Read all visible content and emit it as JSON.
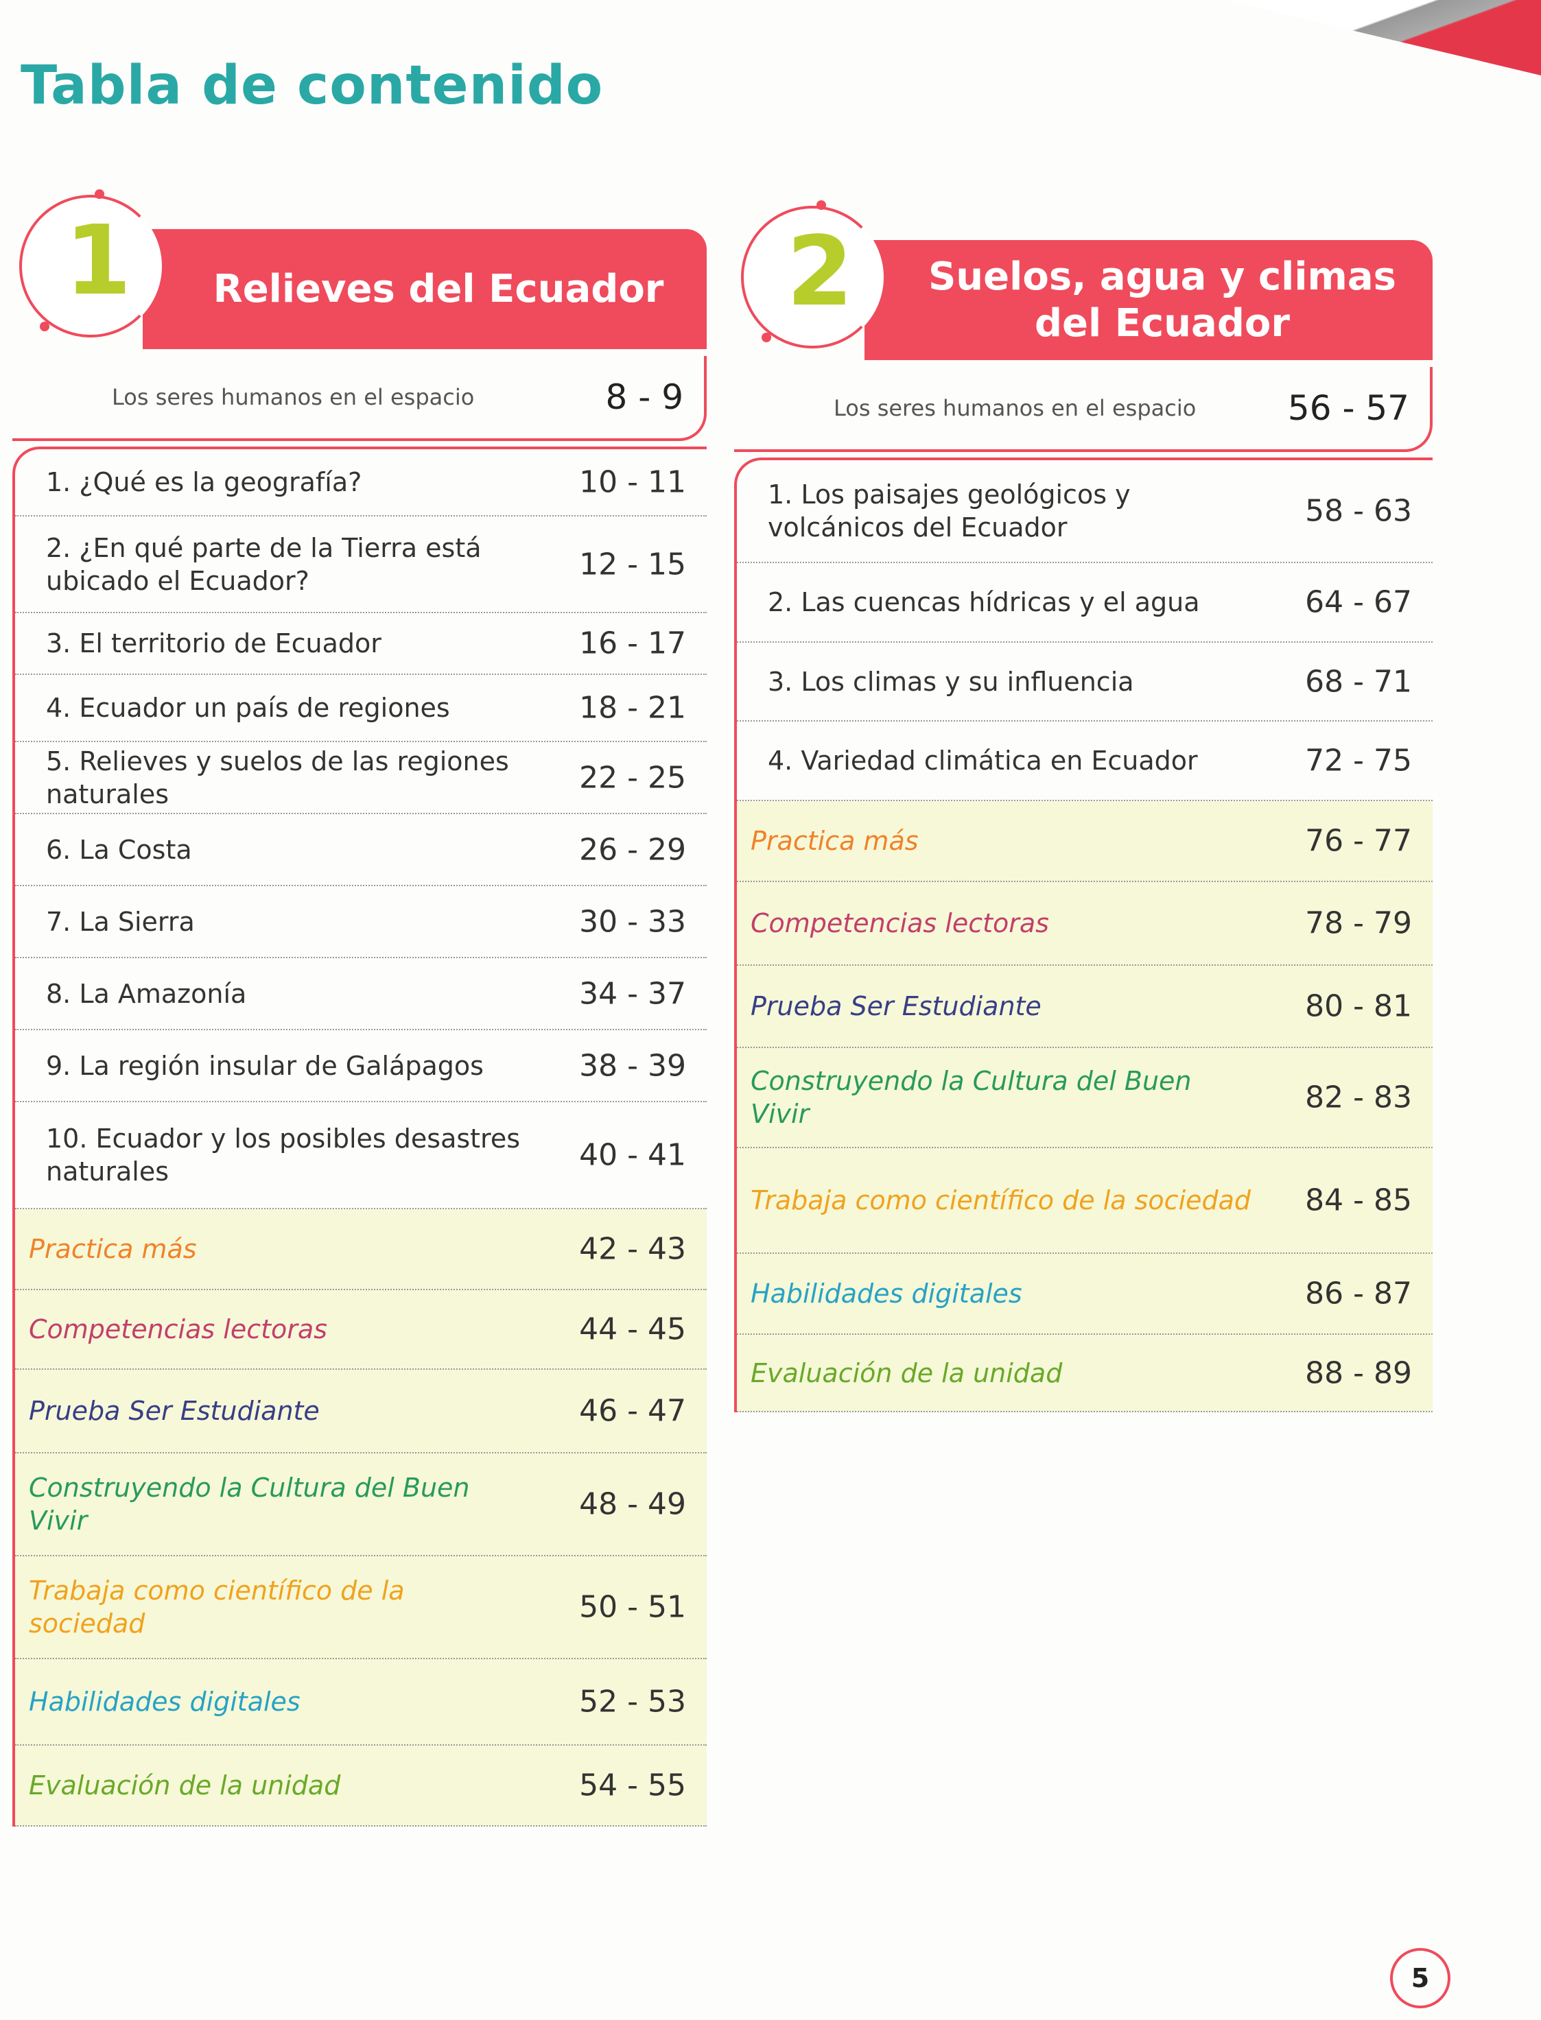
{
  "page_title": "Tabla de contenido",
  "page_number": "5",
  "colors": {
    "accent_red": "#ef4b5c",
    "title_teal": "#2aa8a6",
    "unit_number": "#b7cd2c",
    "highlight_bg": "#f6f8d8"
  },
  "units": [
    {
      "number": "1",
      "title": "Relieves del Ecuador",
      "intro": {
        "label": "Los seres humanos en el espacio",
        "pages": "8 - 9"
      },
      "topics": [
        {
          "label": "1. ¿Qué es la geografía?",
          "pages": "10 - 11"
        },
        {
          "label": "2. ¿En qué parte de la Tierra está ubicado el Ecuador?",
          "pages": "12 - 15"
        },
        {
          "label": "3. El territorio de Ecuador",
          "pages": "16 - 17"
        },
        {
          "label": "4. Ecuador un país de regiones",
          "pages": "18 - 21"
        },
        {
          "label": "5. Relieves y suelos de las regiones naturales",
          "pages": "22 - 25"
        },
        {
          "label": "6. La Costa",
          "pages": "26 - 29"
        },
        {
          "label": "7. La Sierra",
          "pages": "30 - 33"
        },
        {
          "label": "8. La Amazonía",
          "pages": "34 - 37"
        },
        {
          "label": "9. La región insular de Galápagos",
          "pages": "38 - 39"
        },
        {
          "label": "10. Ecuador y los posibles desastres naturales",
          "pages": "40 - 41"
        }
      ],
      "sections": [
        {
          "label": "Practica más",
          "pages": "42 - 43",
          "color": "#f0822a"
        },
        {
          "label": "Competencias lectoras",
          "pages": "44 - 45",
          "color": "#c23f6c"
        },
        {
          "label": "Prueba Ser Estudiante",
          "pages": "46 - 47",
          "color": "#383e86"
        },
        {
          "label": "Construyendo la Cultura del Buen Vivir",
          "pages": "48 - 49",
          "color": "#289a5c"
        },
        {
          "label": "Trabaja como científico de la sociedad",
          "pages": "50 - 51",
          "color": "#f0a21e"
        },
        {
          "label": "Habilidades digitales",
          "pages": "52 - 53",
          "color": "#28a2c4"
        },
        {
          "label": "Evaluación de la unidad",
          "pages": "54 - 55",
          "color": "#6aa82a"
        }
      ]
    },
    {
      "number": "2",
      "title": "Suelos, agua y climas del Ecuador",
      "intro": {
        "label": "Los seres humanos en el espacio",
        "pages": "56 - 57"
      },
      "topics": [
        {
          "label": "1. Los paisajes geológicos y volcánicos del Ecuador",
          "pages": "58 - 63"
        },
        {
          "label": "2. Las cuencas hídricas y el agua",
          "pages": "64 - 67"
        },
        {
          "label": "3. Los climas y su influencia",
          "pages": "68 - 71"
        },
        {
          "label": "4. Variedad climática en Ecuador",
          "pages": "72 - 75"
        }
      ],
      "sections": [
        {
          "label": "Practica más",
          "pages": "76 - 77",
          "color": "#f0822a"
        },
        {
          "label": "Competencias lectoras",
          "pages": "78 - 79",
          "color": "#c23f6c"
        },
        {
          "label": "Prueba Ser Estudiante",
          "pages": "80 - 81",
          "color": "#383e86"
        },
        {
          "label": "Construyendo la Cultura del Buen Vivir",
          "pages": "82 - 83",
          "color": "#289a5c"
        },
        {
          "label": "Trabaja como científico de la sociedad",
          "pages": "84 - 85",
          "color": "#f0a21e"
        },
        {
          "label": "Habilidades digitales",
          "pages": "86 - 87",
          "color": "#28a2c4"
        },
        {
          "label": "Evaluación de la unidad",
          "pages": "88 - 89",
          "color": "#6aa82a"
        }
      ]
    }
  ]
}
